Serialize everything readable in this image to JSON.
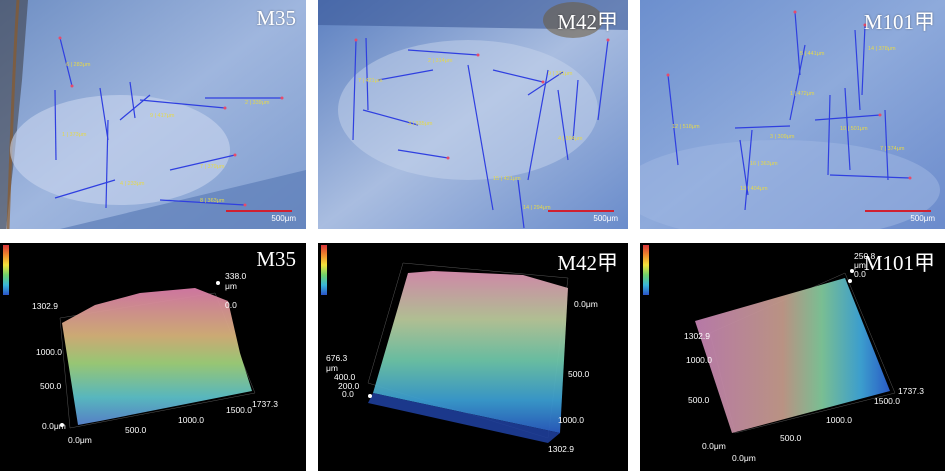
{
  "micrographs": [
    {
      "label": "M35",
      "scale": "500μm"
    },
    {
      "label": "M42甲",
      "scale": "500μm"
    },
    {
      "label": "M101甲",
      "scale": "500μm"
    }
  ],
  "surfaces": [
    {
      "label": "M35",
      "z_max": "338.0",
      "z_unit": "μm",
      "z_min": "0.0",
      "y_ticks": [
        "1302.9",
        "1000.0",
        "500.0",
        "0.0μm"
      ],
      "x_ticks": [
        "0.0μm",
        "500.0",
        "1000.0",
        "1500.0",
        "1737.3"
      ]
    },
    {
      "label": "M42甲",
      "z_ticks": [
        "676.3",
        "400.0",
        "200.0",
        "0.0"
      ],
      "z_unit": "μm",
      "y_ticks": [
        "0.0μm",
        "500.0",
        "1000.0",
        "1302.9"
      ]
    },
    {
      "label": "M101甲",
      "z_max": "250.8",
      "z_unit": "μm",
      "z_min": "0.0",
      "y_ticks": [
        "1302.9",
        "1000.0",
        "500.0",
        "0.0μm"
      ],
      "x_ticks": [
        "0.0μm",
        "500.0",
        "1000.0",
        "1500.0",
        "1737.3"
      ]
    }
  ],
  "icons": {
    "colorbar": "color-scale-legend-icon"
  }
}
